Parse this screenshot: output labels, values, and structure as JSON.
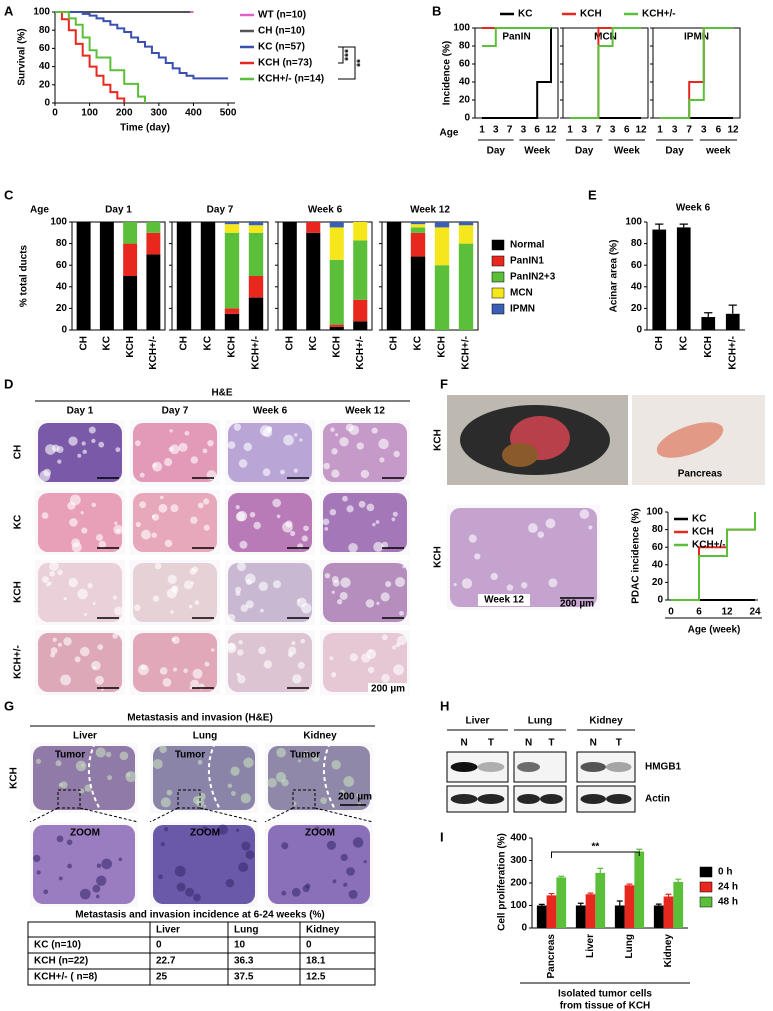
{
  "panel_letters": [
    "A",
    "B",
    "C",
    "E",
    "D",
    "F",
    "G",
    "H",
    "I"
  ],
  "chart_data": [
    {
      "type": "line",
      "step": true,
      "xlabel": "Time (day)",
      "ylabel": "Survival (%)",
      "xlim": [
        0,
        520
      ],
      "xticks": [
        0,
        100,
        200,
        300,
        400,
        500
      ],
      "ylim": [
        0,
        100
      ],
      "yticks": [
        0,
        20,
        40,
        60,
        80,
        100
      ],
      "series": [
        {
          "name": "WT (n=10)",
          "color": "#e060c8",
          "x": [
            0,
            400
          ],
          "values": [
            100,
            100
          ]
        },
        {
          "name": "CH (n=10)",
          "color": "#555555",
          "x": [
            0,
            390
          ],
          "values": [
            100,
            100
          ]
        },
        {
          "name": "KC (n=57)",
          "color": "#3a4fb0",
          "x": [
            0,
            60,
            80,
            100,
            120,
            140,
            160,
            180,
            200,
            220,
            240,
            260,
            280,
            300,
            320,
            340,
            360,
            380,
            400,
            500
          ],
          "values": [
            100,
            100,
            98,
            96,
            93,
            90,
            86,
            82,
            78,
            72,
            67,
            62,
            55,
            50,
            44,
            38,
            33,
            30,
            27,
            27
          ]
        },
        {
          "name": "KCH (n=73)",
          "color": "#e8281e",
          "x": [
            0,
            20,
            40,
            60,
            80,
            100,
            120,
            140,
            160,
            180,
            200
          ],
          "values": [
            100,
            92,
            80,
            65,
            52,
            40,
            30,
            20,
            12,
            5,
            0
          ]
        },
        {
          "name": "KCH+/- (n=14)",
          "color": "#5cbf3a",
          "x": [
            0,
            40,
            60,
            80,
            100,
            120,
            160,
            200,
            240,
            260
          ],
          "values": [
            100,
            93,
            86,
            72,
            58,
            50,
            36,
            21,
            7,
            0
          ]
        }
      ],
      "annotations": [
        "***",
        "**"
      ]
    },
    {
      "type": "line",
      "step": true,
      "xlabel": "Age",
      "ylabel": "Incidence (%)",
      "categories": [
        "1",
        "3",
        "7",
        "3",
        "6",
        "12"
      ],
      "ylim": [
        0,
        100
      ],
      "yticks": [
        0,
        20,
        40,
        60,
        80,
        100
      ],
      "series": [
        {
          "name": "KC",
          "color": "#000000"
        },
        {
          "name": "KCH",
          "color": "#e8281e"
        },
        {
          "name": "KCH+/-",
          "color": "#5cbf3a"
        }
      ],
      "panels": [
        {
          "title": "PanIN",
          "x_groups": [
            "Day",
            "Week"
          ],
          "series_values": [
            [
              0,
              0,
              0,
              0,
              40,
              100
            ],
            [
              100,
              100,
              100,
              100,
              100,
              100
            ],
            [
              80,
              100,
              100,
              100,
              100,
              100
            ]
          ]
        },
        {
          "title": "MCN",
          "x_groups": [
            "Day",
            "Week"
          ],
          "series_values": [
            [
              0,
              0,
              0,
              0,
              0,
              0
            ],
            [
              0,
              0,
              100,
              100,
              100,
              100
            ],
            [
              0,
              0,
              80,
              100,
              100,
              100
            ]
          ]
        },
        {
          "title": "IPMN",
          "x_groups": [
            "Day",
            "week"
          ],
          "series_values": [
            [
              0,
              0,
              0,
              0,
              0,
              0
            ],
            [
              0,
              0,
              40,
              100,
              100,
              100
            ],
            [
              0,
              0,
              20,
              100,
              100,
              100
            ]
          ]
        }
      ]
    },
    {
      "type": "bar",
      "stacked": true,
      "panel_title_label": "Age",
      "ylabel": "% total ducts",
      "categories": [
        "CH",
        "KC",
        "KCH",
        "KCH+/-"
      ],
      "ylim": [
        0,
        100
      ],
      "yticks": [
        0,
        20,
        40,
        60,
        80,
        100
      ],
      "series": [
        {
          "name": "Normal",
          "color": "#000000"
        },
        {
          "name": "PanIN1",
          "color": "#e8281e"
        },
        {
          "name": "PanIN2+3",
          "color": "#5cbf3a"
        },
        {
          "name": "MCN",
          "color": "#f5e71c"
        },
        {
          "name": "IPMN",
          "color": "#3a5fb4"
        }
      ],
      "panels": [
        {
          "title": "Day 1",
          "series_values": [
            [
              100,
              100,
              50,
              70
            ],
            [
              0,
              0,
              30,
              20
            ],
            [
              0,
              0,
              20,
              10
            ],
            [
              0,
              0,
              0,
              0
            ],
            [
              0,
              0,
              0,
              0
            ]
          ]
        },
        {
          "title": "Day 7",
          "series_values": [
            [
              100,
              100,
              15,
              30
            ],
            [
              0,
              0,
              5,
              20
            ],
            [
              0,
              0,
              70,
              40
            ],
            [
              0,
              0,
              8,
              7
            ],
            [
              0,
              0,
              2,
              3
            ]
          ]
        },
        {
          "title": "Week 6",
          "series_values": [
            [
              100,
              90,
              3,
              8
            ],
            [
              0,
              10,
              2,
              20
            ],
            [
              0,
              0,
              60,
              55
            ],
            [
              0,
              0,
              30,
              17
            ],
            [
              0,
              0,
              5,
              0
            ]
          ]
        },
        {
          "title": "Week 12",
          "series_values": [
            [
              100,
              68,
              0,
              0
            ],
            [
              0,
              22,
              0,
              0
            ],
            [
              0,
              5,
              60,
              80
            ],
            [
              0,
              3,
              35,
              17
            ],
            [
              0,
              2,
              5,
              3
            ]
          ]
        }
      ]
    },
    {
      "type": "bar",
      "title": "Week 6",
      "ylabel": "Acinar area (%)",
      "categories": [
        "CH",
        "KC",
        "KCH",
        "KCH+/-"
      ],
      "values": [
        93,
        95,
        12,
        15
      ],
      "errors": [
        5,
        3,
        4,
        8
      ],
      "color": "#000000",
      "ylim": [
        0,
        100
      ],
      "yticks": [
        0,
        20,
        40,
        60,
        80,
        100
      ]
    },
    {
      "type": "line",
      "step": true,
      "xlabel": "Age (week)",
      "ylabel": "PDAC incidence (%)",
      "categories": [
        "0",
        "6",
        "12",
        "24"
      ],
      "ylim": [
        0,
        100
      ],
      "yticks": [
        0,
        20,
        40,
        60,
        80,
        100
      ],
      "series": [
        {
          "name": "KC",
          "color": "#000000",
          "values": [
            0,
            0,
            0,
            0
          ]
        },
        {
          "name": "KCH",
          "color": "#e8281e",
          "values": [
            0,
            60,
            80,
            80
          ]
        },
        {
          "name": "KCH+/-",
          "color": "#5cbf3a",
          "values": [
            0,
            50,
            80,
            100
          ]
        }
      ]
    },
    {
      "type": "bar",
      "ylabel": "Cell proliferation (%)",
      "xlabel_lines": [
        "Isolated tumor cells",
        "from tissue of KCH"
      ],
      "categories": [
        "Pancreas",
        "Liver",
        "Lung",
        "Kidney"
      ],
      "ylim": [
        0,
        400
      ],
      "yticks": [
        0,
        100,
        200,
        300,
        400
      ],
      "series": [
        {
          "name": "0 h",
          "color": "#000000",
          "values": [
            100,
            100,
            100,
            100
          ],
          "errors": [
            5,
            10,
            20,
            6
          ]
        },
        {
          "name": "24 h",
          "color": "#e8281e",
          "values": [
            145,
            150,
            190,
            140
          ],
          "errors": [
            8,
            5,
            5,
            10
          ]
        },
        {
          "name": "48 h",
          "color": "#5cbf3a",
          "values": [
            225,
            245,
            340,
            205
          ],
          "errors": [
            5,
            20,
            10,
            12
          ]
        }
      ],
      "annotations": [
        "**"
      ]
    }
  ],
  "histology": {
    "title": "H&E",
    "columns": [
      "Day 1",
      "Day 7",
      "Week 6",
      "Week 12"
    ],
    "rows": [
      "CH",
      "KC",
      "KCH",
      "KCH+/-"
    ],
    "scale_bar": "200 µm"
  },
  "mouse_images": {
    "row_label": "KCH",
    "organ_label": "Pancreas",
    "histology_row_label": "KCH",
    "histology_label": "Week 12",
    "scale_bar": "200 µm"
  },
  "metastasis": {
    "title": "Metastasis and invasion (H&E)",
    "columns": [
      "Liver",
      "Lung",
      "Kidney"
    ],
    "row_label": "KCH",
    "tumor_label": "Tumor",
    "zoom_label": "ZOOM",
    "scale_bar": "200 µm",
    "table": {
      "title": "Metastasis and invasion incidence at 6-24 weeks (%)",
      "columns": [
        "Liver",
        "Lung",
        "Kidney"
      ],
      "rows": [
        {
          "label": "KC (n=10)",
          "values": [
            0,
            10,
            0
          ]
        },
        {
          "label": "KCH (n=22)",
          "values": [
            22.7,
            36.3,
            18.1
          ]
        },
        {
          "label": "KCH+/- ( n=8)",
          "values": [
            25,
            37.5,
            12.5
          ]
        }
      ]
    }
  },
  "western_blot": {
    "columns": [
      "Liver",
      "Lung",
      "Kidney"
    ],
    "lanes": [
      "N",
      "T"
    ],
    "proteins": [
      "HMGB1",
      "Actin"
    ]
  }
}
